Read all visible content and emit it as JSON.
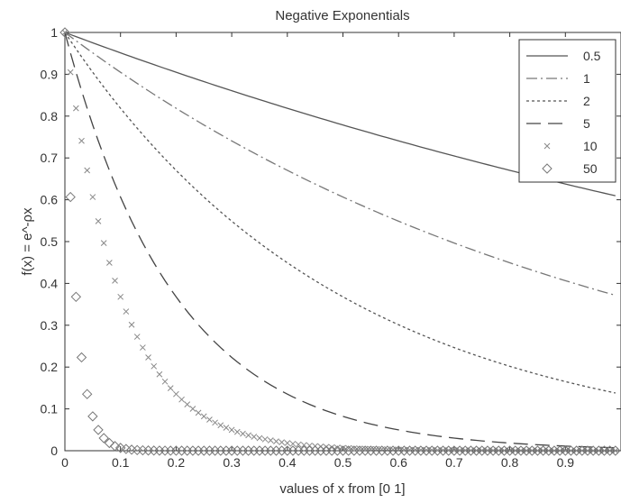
{
  "chart_data": {
    "type": "line",
    "title": "Negative Exponentials",
    "xlabel": "values of x from [0 1]",
    "ylabel": "f(x) = e^-ρx",
    "xlim": [
      0,
      1
    ],
    "ylim": [
      0,
      1
    ],
    "x_ticks": [
      0,
      0.1,
      0.2,
      0.3,
      0.4,
      0.5,
      0.6,
      0.7,
      0.8,
      0.9
    ],
    "y_ticks": [
      0,
      0.1,
      0.2,
      0.3,
      0.4,
      0.5,
      0.6,
      0.7,
      0.8,
      0.9,
      1
    ],
    "grid": false,
    "legend_position": "top-right",
    "x": [
      0,
      0.01,
      0.02,
      0.03,
      0.04,
      0.05,
      0.06,
      0.07,
      0.08,
      0.09,
      0.1,
      0.11,
      0.12,
      0.13,
      0.14,
      0.15,
      0.16,
      0.17,
      0.18,
      0.19,
      0.2,
      0.21,
      0.22,
      0.23,
      0.24,
      0.25,
      0.26,
      0.27,
      0.28,
      0.29,
      0.3,
      0.31,
      0.32,
      0.33,
      0.34,
      0.35,
      0.36,
      0.37,
      0.38,
      0.39,
      0.4,
      0.41,
      0.42,
      0.43,
      0.44,
      0.45,
      0.46,
      0.47,
      0.48,
      0.49,
      0.5,
      0.51,
      0.52,
      0.53,
      0.54,
      0.55,
      0.56,
      0.57,
      0.58,
      0.59,
      0.6,
      0.61,
      0.62,
      0.63,
      0.64,
      0.65,
      0.66,
      0.67,
      0.68,
      0.69,
      0.7,
      0.71,
      0.72,
      0.73,
      0.74,
      0.75,
      0.76,
      0.77,
      0.78,
      0.79,
      0.8,
      0.81,
      0.82,
      0.83,
      0.84,
      0.85,
      0.86,
      0.87,
      0.88,
      0.89,
      0.9,
      0.91,
      0.92,
      0.93,
      0.94,
      0.95,
      0.96,
      0.97,
      0.98,
      0.99
    ],
    "series": [
      {
        "name": "0.5",
        "rate": 0.5,
        "style": "solid",
        "color": "#555555"
      },
      {
        "name": "1",
        "rate": 1,
        "style": "dashdot",
        "color": "#777777"
      },
      {
        "name": "2",
        "rate": 2,
        "style": "dotted",
        "color": "#555555"
      },
      {
        "name": "5",
        "rate": 5,
        "style": "dashed",
        "color": "#444444"
      },
      {
        "name": "10",
        "rate": 10,
        "style": "x-marker",
        "color": "#888888"
      },
      {
        "name": "50",
        "rate": 50,
        "style": "diamond-marker",
        "color": "#777777"
      }
    ]
  }
}
